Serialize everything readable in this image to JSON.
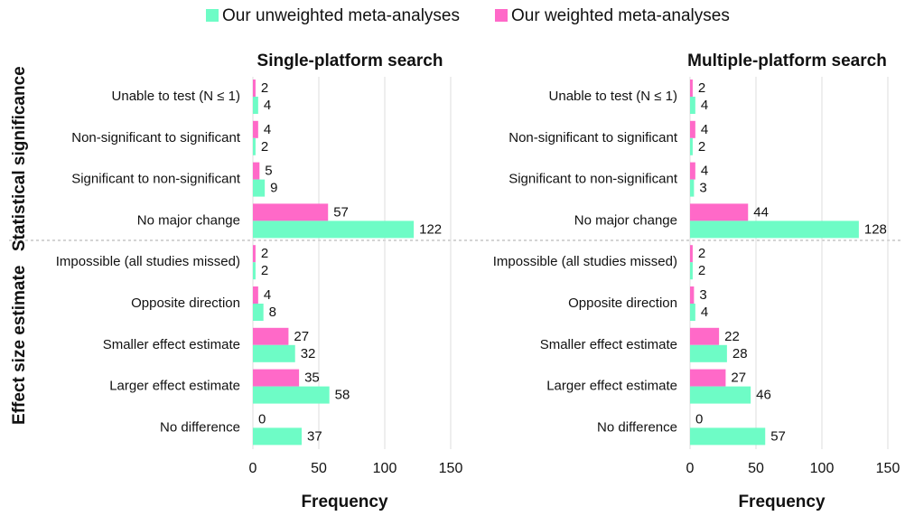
{
  "chart_data": {
    "type": "bar",
    "orientation": "horizontal",
    "legend": "top",
    "grid": true,
    "series": [
      {
        "name": "Our unweighted meta-analyses",
        "color": "#6efcc6"
      },
      {
        "name": "Our weighted meta-analyses",
        "color": "#ff69c8"
      }
    ],
    "groups": [
      {
        "label": "Statistical significance",
        "categories": [
          "Unable to test (N ≤ 1)",
          "Non-significant to significant",
          "Significant to non-significant",
          "No major change"
        ]
      },
      {
        "label": "Effect size estimate",
        "categories": [
          "Impossible (all studies missed)",
          "Opposite direction",
          "Smaller effect estimate",
          "Larger effect estimate",
          "No difference"
        ]
      }
    ],
    "panels": [
      {
        "title": "Single-platform search",
        "values": [
          [
            4,
            2,
            9,
            122,
            2,
            8,
            32,
            58,
            37
          ],
          [
            2,
            4,
            5,
            57,
            2,
            4,
            27,
            35,
            0
          ]
        ],
        "xlim": [
          0,
          150
        ],
        "xticks": [
          0,
          50,
          100,
          150
        ],
        "xlabel": "Frequency"
      },
      {
        "title": "Multiple-platform search",
        "values": [
          [
            4,
            2,
            3,
            128,
            2,
            4,
            28,
            46,
            57
          ],
          [
            2,
            4,
            4,
            44,
            2,
            3,
            22,
            27,
            0
          ]
        ],
        "xlim": [
          0,
          150
        ],
        "xticks": [
          0,
          50,
          100,
          150
        ],
        "xlabel": "Frequency"
      }
    ]
  }
}
